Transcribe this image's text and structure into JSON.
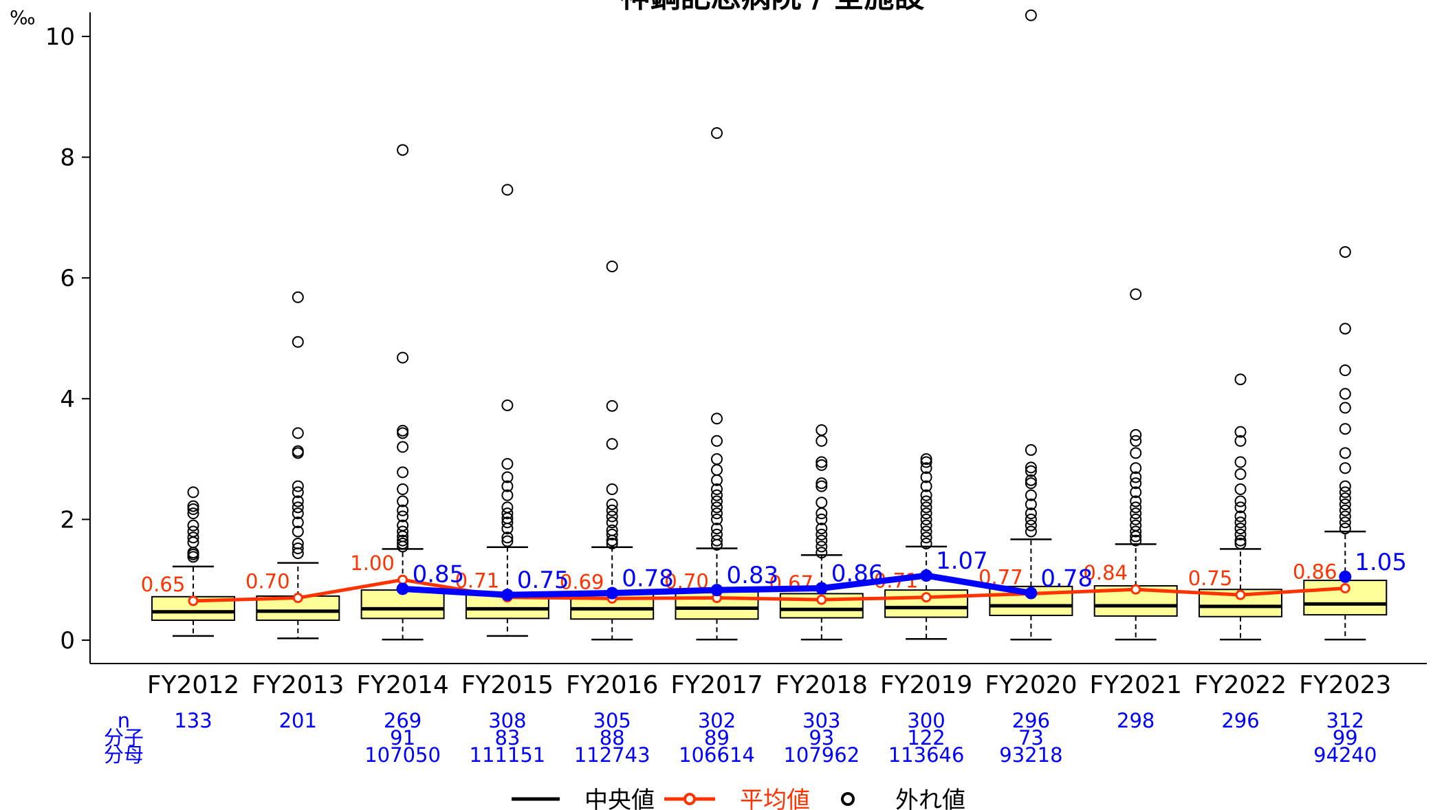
{
  "chart_data": {
    "type": "box",
    "title": "神鋼記念病院 / 全施設",
    "yunit": "‰",
    "ylim": [
      0,
      10
    ],
    "yticks": [
      0,
      2,
      4,
      6,
      8,
      10
    ],
    "categories": [
      "FY2012",
      "FY2013",
      "FY2014",
      "FY2015",
      "FY2016",
      "FY2017",
      "FY2018",
      "FY2019",
      "FY2020",
      "FY2021",
      "FY2022",
      "FY2023"
    ],
    "boxes": [
      {
        "whisker_low": 0.07,
        "q1": 0.33,
        "median": 0.47,
        "q3": 0.72,
        "whisker_high": 1.22,
        "outliers": [
          1.38,
          1.42,
          1.45,
          1.62,
          1.7,
          1.8,
          1.9,
          2.1,
          2.17,
          2.22,
          2.45
        ]
      },
      {
        "whisker_low": 0.03,
        "q1": 0.33,
        "median": 0.48,
        "q3": 0.73,
        "whisker_high": 1.28,
        "outliers": [
          1.44,
          1.52,
          1.6,
          1.8,
          1.95,
          2.1,
          2.2,
          2.3,
          2.45,
          2.55,
          3.1,
          3.13,
          3.43,
          4.94,
          5.68
        ]
      },
      {
        "whisker_low": 0.01,
        "q1": 0.36,
        "median": 0.52,
        "q3": 0.83,
        "whisker_high": 1.51,
        "outliers": [
          1.55,
          1.6,
          1.65,
          1.72,
          1.8,
          1.9,
          2.05,
          2.15,
          2.3,
          2.5,
          2.78,
          3.2,
          3.43,
          3.47,
          4.68,
          8.12
        ]
      },
      {
        "whisker_low": 0.07,
        "q1": 0.36,
        "median": 0.52,
        "q3": 0.78,
        "whisker_high": 1.54,
        "outliers": [
          1.64,
          1.7,
          1.85,
          1.95,
          2.02,
          2.1,
          2.2,
          2.4,
          2.55,
          2.7,
          2.92,
          3.89,
          7.46
        ]
      },
      {
        "whisker_low": 0.01,
        "q1": 0.35,
        "median": 0.52,
        "q3": 0.78,
        "whisker_high": 1.54,
        "outliers": [
          1.6,
          1.65,
          1.75,
          1.82,
          1.95,
          2.05,
          2.15,
          2.25,
          2.5,
          3.25,
          3.88,
          6.19
        ]
      },
      {
        "whisker_low": 0.01,
        "q1": 0.35,
        "median": 0.53,
        "q3": 0.8,
        "whisker_high": 1.52,
        "outliers": [
          1.58,
          1.65,
          1.75,
          1.85,
          2.0,
          2.1,
          2.2,
          2.3,
          2.4,
          2.5,
          2.65,
          2.82,
          3.0,
          3.3,
          3.67,
          8.4
        ]
      },
      {
        "whisker_low": 0.01,
        "q1": 0.37,
        "median": 0.51,
        "q3": 0.77,
        "whisker_high": 1.41,
        "outliers": [
          1.45,
          1.55,
          1.65,
          1.75,
          1.85,
          2.0,
          2.1,
          2.28,
          2.55,
          2.6,
          2.9,
          2.95,
          3.3,
          3.48
        ]
      },
      {
        "whisker_low": 0.02,
        "q1": 0.38,
        "median": 0.54,
        "q3": 0.83,
        "whisker_high": 1.55,
        "outliers": [
          1.6,
          1.7,
          1.8,
          1.9,
          2.0,
          2.1,
          2.2,
          2.3,
          2.4,
          2.55,
          2.7,
          2.85,
          2.95,
          3.0
        ]
      },
      {
        "whisker_low": 0.01,
        "q1": 0.41,
        "median": 0.57,
        "q3": 0.89,
        "whisker_high": 1.67,
        "outliers": [
          1.8,
          1.9,
          2.0,
          2.1,
          2.25,
          2.4,
          2.6,
          2.65,
          2.8,
          2.86,
          3.15,
          10.35
        ]
      },
      {
        "whisker_low": 0.01,
        "q1": 0.4,
        "median": 0.57,
        "q3": 0.9,
        "whisker_high": 1.59,
        "outliers": [
          1.65,
          1.72,
          1.8,
          1.9,
          2.0,
          2.1,
          2.2,
          2.3,
          2.45,
          2.6,
          2.7,
          2.85,
          3.1,
          3.3,
          3.4,
          5.73
        ]
      },
      {
        "whisker_low": 0.01,
        "q1": 0.39,
        "median": 0.56,
        "q3": 0.84,
        "whisker_high": 1.51,
        "outliers": [
          1.6,
          1.65,
          1.75,
          1.85,
          1.95,
          2.05,
          2.2,
          2.3,
          2.5,
          2.75,
          2.95,
          3.3,
          3.45,
          4.32
        ]
      },
      {
        "whisker_low": 0.01,
        "q1": 0.42,
        "median": 0.6,
        "q3": 0.99,
        "whisker_high": 1.8,
        "outliers": [
          1.85,
          1.95,
          2.05,
          2.15,
          2.25,
          2.35,
          2.45,
          2.55,
          2.85,
          3.1,
          3.5,
          3.85,
          4.08,
          4.47,
          5.16,
          6.43
        ]
      }
    ],
    "mean_series": {
      "name": "平均値",
      "values": [
        0.65,
        0.7,
        1.0,
        0.71,
        0.69,
        0.7,
        0.67,
        0.71,
        0.77,
        0.84,
        0.75,
        0.86
      ],
      "labels": [
        "0.65",
        "0.70",
        "1.00",
        "0.71",
        "0.69",
        "0.70",
        "0.67",
        "0.71",
        "0.77",
        "0.84",
        "0.75",
        "0.86"
      ]
    },
    "hospital_series": {
      "values": [
        null,
        null,
        0.85,
        0.75,
        0.78,
        0.83,
        0.86,
        1.07,
        0.78,
        null,
        null,
        1.05
      ],
      "labels": [
        null,
        null,
        "0.85",
        "0.75",
        "0.78",
        "0.83",
        "0.86",
        "1.07",
        "0.78",
        null,
        null,
        "1.05"
      ]
    },
    "stats_row_labels": [
      "n",
      "分子",
      "分母"
    ],
    "stats": {
      "n": [
        "133",
        "201",
        "269",
        "308",
        "305",
        "302",
        "303",
        "300",
        "296",
        "298",
        "296",
        "312"
      ],
      "numerator": [
        "",
        "",
        "91",
        "83",
        "88",
        "89",
        "93",
        "122",
        "73",
        "",
        "",
        "99"
      ],
      "denominator": [
        "",
        "",
        "107050",
        "111151",
        "112743",
        "106614",
        "107962",
        "113646",
        "93218",
        "",
        "",
        "94240"
      ]
    },
    "legend": {
      "median": "中央値",
      "mean": "平均値",
      "outlier": "外れ値"
    },
    "colors": {
      "box_fill": "#ffff99",
      "mean": "#ff3300",
      "hospital": "#0000ff",
      "stats": "#0000ff",
      "axis": "#000000"
    }
  }
}
